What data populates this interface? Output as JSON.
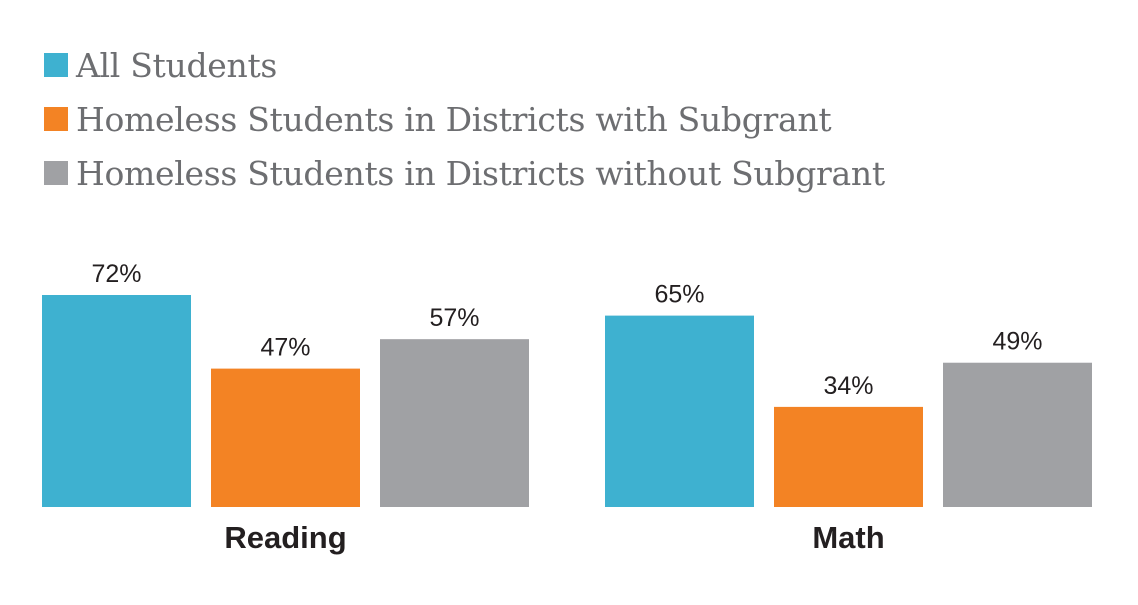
{
  "chart_data": {
    "type": "bar",
    "categories": [
      "Reading",
      "Math"
    ],
    "series": [
      {
        "name": "All Students",
        "values": [
          72,
          65
        ],
        "color": "#3eb1d0"
      },
      {
        "name": "Homeless Students in Districts with Subgrant",
        "values": [
          47,
          34
        ],
        "color": "#f38324"
      },
      {
        "name": "Homeless Students in Districts without Subgrant",
        "values": [
          57,
          49
        ],
        "color": "#a0a1a4"
      }
    ],
    "value_suffix": "%",
    "ylim": [
      0,
      72
    ],
    "grid": false,
    "legend": "top-left",
    "title": "",
    "xlabel": "",
    "ylabel": ""
  }
}
